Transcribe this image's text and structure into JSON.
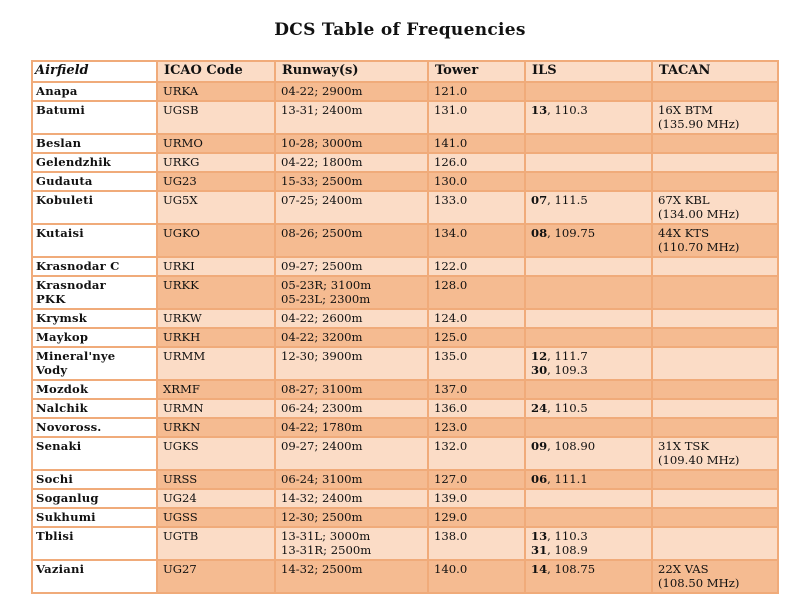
{
  "title": "DCS Table of Frequencies",
  "columns": [
    "Airfield",
    "ICAO Code",
    "Runway(s)",
    "Tower",
    "ILS",
    "TACAN"
  ],
  "rows": [
    {
      "name": [
        "Anapa"
      ],
      "icao": "URKA",
      "runways": [
        "04-22; 2900m"
      ],
      "tower": "121.0",
      "ils": [],
      "tacan": []
    },
    {
      "name": [
        "Batumi"
      ],
      "icao": "UGSB",
      "runways": [
        "13-31; 2400m"
      ],
      "tower": "131.0",
      "ils": [
        {
          "rwy": "13",
          "freq": ", 110.3"
        }
      ],
      "tacan": [
        "16X BTM",
        "(135.90 MHz)"
      ]
    },
    {
      "name": [
        "Beslan"
      ],
      "icao": "URMO",
      "runways": [
        "10-28; 3000m"
      ],
      "tower": "141.0",
      "ils": [],
      "tacan": []
    },
    {
      "name": [
        "Gelendzhik"
      ],
      "icao": "URKG",
      "runways": [
        "04-22; 1800m"
      ],
      "tower": "126.0",
      "ils": [],
      "tacan": []
    },
    {
      "name": [
        "Gudauta"
      ],
      "icao": "UG23",
      "runways": [
        "15-33; 2500m"
      ],
      "tower": "130.0",
      "ils": [],
      "tacan": []
    },
    {
      "name": [
        "Kobuleti"
      ],
      "icao": "UG5X",
      "runways": [
        "07-25; 2400m"
      ],
      "tower": "133.0",
      "ils": [
        {
          "rwy": "07",
          "freq": ", 111.5"
        }
      ],
      "tacan": [
        "67X KBL",
        "(134.00 MHz)"
      ]
    },
    {
      "name": [
        "Kutaisi"
      ],
      "icao": "UGKO",
      "runways": [
        "08-26; 2500m"
      ],
      "tower": "134.0",
      "ils": [
        {
          "rwy": "08",
          "freq": ", 109.75"
        }
      ],
      "tacan": [
        "44X KTS",
        "(110.70 MHz)"
      ]
    },
    {
      "name": [
        "Krasnodar C"
      ],
      "icao": "URKI",
      "runways": [
        "09-27; 2500m"
      ],
      "tower": "122.0",
      "ils": [],
      "tacan": []
    },
    {
      "name": [
        "Krasnodar",
        "PKK"
      ],
      "icao": "URKK",
      "runways": [
        "05-23R; 3100m",
        "05-23L; 2300m"
      ],
      "tower": "128.0",
      "ils": [],
      "tacan": []
    },
    {
      "name": [
        "Krymsk"
      ],
      "icao": "URKW",
      "runways": [
        "04-22; 2600m"
      ],
      "tower": "124.0",
      "ils": [],
      "tacan": []
    },
    {
      "name": [
        "Maykop"
      ],
      "icao": "URKH",
      "runways": [
        "04-22; 3200m"
      ],
      "tower": "125.0",
      "ils": [],
      "tacan": []
    },
    {
      "name": [
        "Mineral'nye",
        "Vody"
      ],
      "icao": "URMM",
      "runways": [
        "12-30; 3900m"
      ],
      "tower": "135.0",
      "ils": [
        {
          "rwy": "12",
          "freq": ", 111.7"
        },
        {
          "rwy": "30",
          "freq": ", 109.3"
        }
      ],
      "tacan": []
    },
    {
      "name": [
        "Mozdok"
      ],
      "icao": "XRMF",
      "runways": [
        "08-27; 3100m"
      ],
      "tower": "137.0",
      "ils": [],
      "tacan": []
    },
    {
      "name": [
        "Nalchik"
      ],
      "icao": "URMN",
      "runways": [
        "06-24; 2300m"
      ],
      "tower": "136.0",
      "ils": [
        {
          "rwy": "24",
          "freq": ", 110.5"
        }
      ],
      "tacan": []
    },
    {
      "name": [
        "Novoross."
      ],
      "icao": "URKN",
      "runways": [
        "04-22; 1780m"
      ],
      "tower": "123.0",
      "ils": [],
      "tacan": []
    },
    {
      "name": [
        "Senaki"
      ],
      "icao": "UGKS",
      "runways": [
        "09-27; 2400m"
      ],
      "tower": "132.0",
      "ils": [
        {
          "rwy": "09",
          "freq": ", 108.90"
        }
      ],
      "tacan": [
        "31X TSK",
        "(109.40 MHz)"
      ]
    },
    {
      "name": [
        "Sochi"
      ],
      "icao": "URSS",
      "runways": [
        "06-24; 3100m"
      ],
      "tower": "127.0",
      "ils": [
        {
          "rwy": "06",
          "freq": ", 111.1"
        }
      ],
      "tacan": []
    },
    {
      "name": [
        "Soganlug"
      ],
      "icao": "UG24",
      "runways": [
        "14-32; 2400m"
      ],
      "tower": "139.0",
      "ils": [],
      "tacan": []
    },
    {
      "name": [
        "Sukhumi"
      ],
      "icao": "UGSS",
      "runways": [
        "12-30; 2500m"
      ],
      "tower": "129.0",
      "ils": [],
      "tacan": []
    },
    {
      "name": [
        "Tblisi"
      ],
      "icao": "UGTB",
      "runways": [
        "13-31L; 3000m",
        "13-31R; 2500m"
      ],
      "tower": "138.0",
      "ils": [
        {
          "rwy": "13",
          "freq": ", 110.3"
        },
        {
          "rwy": "31",
          "freq": ", 108.9"
        }
      ],
      "tacan": []
    },
    {
      "name": [
        "Vaziani"
      ],
      "icao": "UG27",
      "runways": [
        "14-32; 2500m"
      ],
      "tower": "140.0",
      "ils": [
        {
          "rwy": "14",
          "freq": ", 108.75"
        }
      ],
      "tacan": [
        "22X VAS",
        "(108.50 MHz)"
      ]
    }
  ],
  "colors": {
    "border": "#f0ab7a",
    "row_dark": "#f5bb91",
    "row_light": "#fbdcc6"
  }
}
